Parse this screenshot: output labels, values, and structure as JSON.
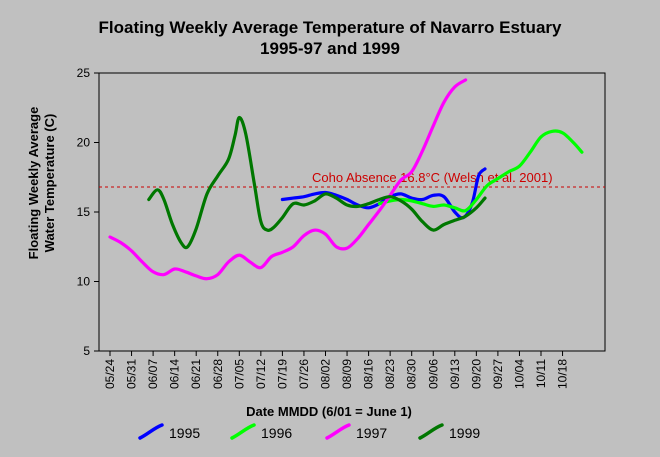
{
  "chart_data": {
    "type": "line",
    "title": "Floating Weekly Average Temperature of Navarro Estuary",
    "subtitle": "1995-97 and 1999",
    "xlabel": "Date MMDD (6/01 = June 1)",
    "ylabel": [
      "Floating Weekly Average",
      "Water Temperature (C)"
    ],
    "ylim": [
      5,
      25
    ],
    "yticks": [
      5,
      10,
      15,
      20,
      25
    ],
    "x_categories": [
      "05/24",
      "05/31",
      "06/07",
      "06/14",
      "06/21",
      "06/28",
      "07/05",
      "07/12",
      "07/19",
      "07/26",
      "08/02",
      "08/09",
      "08/16",
      "08/23",
      "08/30",
      "09/06",
      "09/13",
      "09/20",
      "09/27",
      "10/04",
      "10/11",
      "10/18"
    ],
    "grid": false,
    "legend_position": "bottom",
    "annotation": {
      "text": "Coho Absence 16.8°C (Welsh et al. 2001)",
      "value": 16.8,
      "color": "#cc0000"
    },
    "series": [
      {
        "name": "1995",
        "color": "#0000ff",
        "points": [
          [
            8.0,
            15.9
          ],
          [
            8.5,
            16.0
          ],
          [
            9.0,
            16.1
          ],
          [
            9.5,
            16.3
          ],
          [
            10.0,
            16.4
          ],
          [
            10.5,
            16.2
          ],
          [
            11.0,
            15.9
          ],
          [
            11.5,
            15.5
          ],
          [
            12.0,
            15.3
          ],
          [
            12.5,
            15.6
          ],
          [
            13.0,
            16.1
          ],
          [
            13.5,
            16.3
          ],
          [
            14.0,
            16.0
          ],
          [
            14.5,
            15.9
          ],
          [
            15.0,
            16.2
          ],
          [
            15.5,
            16.1
          ],
          [
            16.0,
            15.0
          ],
          [
            16.4,
            14.6
          ],
          [
            16.8,
            15.6
          ],
          [
            17.1,
            17.6
          ],
          [
            17.4,
            18.1
          ]
        ]
      },
      {
        "name": "1996",
        "color": "#00ff00",
        "points": [
          [
            12.5,
            15.6
          ],
          [
            13.0,
            15.8
          ],
          [
            13.5,
            15.9
          ],
          [
            14.0,
            15.8
          ],
          [
            14.5,
            15.6
          ],
          [
            15.0,
            15.4
          ],
          [
            15.5,
            15.5
          ],
          [
            16.0,
            15.3
          ],
          [
            16.5,
            15.1
          ],
          [
            17.0,
            15.9
          ],
          [
            17.5,
            16.9
          ],
          [
            18.0,
            17.4
          ],
          [
            18.5,
            17.9
          ],
          [
            19.0,
            18.3
          ],
          [
            19.5,
            19.3
          ],
          [
            20.0,
            20.4
          ],
          [
            20.5,
            20.8
          ],
          [
            21.0,
            20.7
          ],
          [
            21.5,
            20.0
          ],
          [
            21.9,
            19.3
          ]
        ]
      },
      {
        "name": "1997",
        "color": "#ff00ff",
        "points": [
          [
            0.0,
            13.2
          ],
          [
            0.5,
            12.8
          ],
          [
            1.0,
            12.2
          ],
          [
            1.5,
            11.4
          ],
          [
            2.0,
            10.7
          ],
          [
            2.5,
            10.5
          ],
          [
            3.0,
            10.9
          ],
          [
            3.5,
            10.7
          ],
          [
            4.0,
            10.4
          ],
          [
            4.5,
            10.2
          ],
          [
            5.0,
            10.5
          ],
          [
            5.5,
            11.4
          ],
          [
            6.0,
            11.9
          ],
          [
            6.5,
            11.4
          ],
          [
            7.0,
            11.0
          ],
          [
            7.5,
            11.8
          ],
          [
            8.0,
            12.1
          ],
          [
            8.5,
            12.5
          ],
          [
            9.0,
            13.3
          ],
          [
            9.5,
            13.7
          ],
          [
            10.0,
            13.4
          ],
          [
            10.5,
            12.5
          ],
          [
            11.0,
            12.4
          ],
          [
            11.5,
            13.1
          ],
          [
            12.0,
            14.1
          ],
          [
            12.5,
            15.1
          ],
          [
            13.0,
            16.2
          ],
          [
            13.5,
            17.3
          ],
          [
            14.0,
            17.9
          ],
          [
            14.5,
            19.4
          ],
          [
            15.0,
            21.2
          ],
          [
            15.5,
            22.9
          ],
          [
            16.0,
            24.0
          ],
          [
            16.5,
            24.5
          ]
        ]
      },
      {
        "name": "1999",
        "color": "#007700",
        "points": [
          [
            1.8,
            15.9
          ],
          [
            2.2,
            16.6
          ],
          [
            2.5,
            15.9
          ],
          [
            2.9,
            14.1
          ],
          [
            3.3,
            12.8
          ],
          [
            3.6,
            12.5
          ],
          [
            4.0,
            13.8
          ],
          [
            4.5,
            16.3
          ],
          [
            5.0,
            17.6
          ],
          [
            5.5,
            18.8
          ],
          [
            5.8,
            20.5
          ],
          [
            6.0,
            21.8
          ],
          [
            6.3,
            20.6
          ],
          [
            6.7,
            17.0
          ],
          [
            7.0,
            14.3
          ],
          [
            7.3,
            13.7
          ],
          [
            7.6,
            13.9
          ],
          [
            8.0,
            14.6
          ],
          [
            8.5,
            15.6
          ],
          [
            9.0,
            15.5
          ],
          [
            9.5,
            15.8
          ],
          [
            10.0,
            16.3
          ],
          [
            10.5,
            16.0
          ],
          [
            11.0,
            15.5
          ],
          [
            11.5,
            15.4
          ],
          [
            12.0,
            15.6
          ],
          [
            12.5,
            15.9
          ],
          [
            13.0,
            16.1
          ],
          [
            13.5,
            15.8
          ],
          [
            14.0,
            15.2
          ],
          [
            14.5,
            14.3
          ],
          [
            15.0,
            13.7
          ],
          [
            15.5,
            14.1
          ],
          [
            16.0,
            14.4
          ],
          [
            16.5,
            14.7
          ],
          [
            17.0,
            15.3
          ],
          [
            17.4,
            16.0
          ]
        ]
      }
    ]
  }
}
